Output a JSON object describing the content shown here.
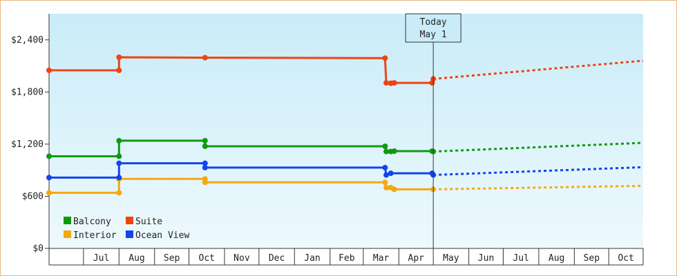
{
  "chart_data": {
    "type": "line",
    "title": "",
    "xlabel": "",
    "ylabel": "",
    "ylim": [
      0,
      2700
    ],
    "y_ticks": [
      0,
      600,
      1200,
      1800,
      2400
    ],
    "y_tick_labels": [
      "$0",
      "$600",
      "$1,200",
      "$1,800",
      "$2,400"
    ],
    "xlim": [
      "2015-06-01",
      "2016-10-31"
    ],
    "x_tick_labels": [
      {
        "date": "2015-07-01",
        "label": "Jul"
      },
      {
        "date": "2015-08-01",
        "label": "Aug"
      },
      {
        "date": "2015-09-01",
        "label": "Sep"
      },
      {
        "date": "2015-10-01",
        "label": "Oct"
      },
      {
        "date": "2015-11-01",
        "label": "Nov"
      },
      {
        "date": "2015-12-01",
        "label": "Dec"
      },
      {
        "date": "2016-01-01",
        "label": "Jan"
      },
      {
        "date": "2016-02-01",
        "label": "Feb"
      },
      {
        "date": "2016-03-01",
        "label": "Mar"
      },
      {
        "date": "2016-04-01",
        "label": "Apr"
      },
      {
        "date": "2016-05-01",
        "label": "May"
      },
      {
        "date": "2016-06-01",
        "label": "Jun"
      },
      {
        "date": "2016-07-01",
        "label": "Jul"
      },
      {
        "date": "2016-08-01",
        "label": "Aug"
      },
      {
        "date": "2016-09-01",
        "label": "Sep"
      },
      {
        "date": "2016-10-01",
        "label": "Oct"
      }
    ],
    "month_boundaries": [
      "2015-07-01",
      "2015-08-01",
      "2015-09-01",
      "2015-10-01",
      "2015-11-01",
      "2015-12-01",
      "2016-01-01",
      "2016-02-01",
      "2016-03-01",
      "2016-04-01",
      "2016-05-01",
      "2016-06-01",
      "2016-07-01",
      "2016-08-01",
      "2016-09-01",
      "2016-10-01",
      "2016-10-31"
    ],
    "today_marker": {
      "date": "2016-05-01",
      "label_line1": "Today",
      "label_line2": "May 1"
    },
    "legend": {
      "placement": "bottom-left",
      "columns": 2
    },
    "series": [
      {
        "name": "Balcony",
        "color": "#119911",
        "step": true,
        "points": [
          [
            "2015-06-01",
            1060
          ],
          [
            "2015-08-01",
            1060
          ],
          [
            "2015-08-01",
            1240
          ],
          [
            "2015-10-15",
            1240
          ],
          [
            "2015-10-15",
            1175
          ],
          [
            "2016-03-20",
            1175
          ],
          [
            "2016-03-21",
            1115
          ],
          [
            "2016-03-25",
            1115
          ],
          [
            "2016-03-28",
            1120
          ],
          [
            "2016-04-30",
            1120
          ],
          [
            "2016-05-01",
            1115
          ]
        ],
        "markers": [
          [
            "2015-06-01",
            1060
          ],
          [
            "2015-08-01",
            1060
          ],
          [
            "2015-08-01",
            1240
          ],
          [
            "2015-10-15",
            1240
          ],
          [
            "2015-10-15",
            1175
          ],
          [
            "2016-03-20",
            1175
          ],
          [
            "2016-03-21",
            1115
          ],
          [
            "2016-03-25",
            1115
          ],
          [
            "2016-03-28",
            1120
          ],
          [
            "2016-04-30",
            1120
          ],
          [
            "2016-05-01",
            1115
          ]
        ],
        "projection": [
          [
            "2016-05-01",
            1115
          ],
          [
            "2016-10-31",
            1215
          ]
        ]
      },
      {
        "name": "Suite",
        "color": "#ee4411",
        "step": true,
        "points": [
          [
            "2015-06-01",
            2050
          ],
          [
            "2015-08-01",
            2050
          ],
          [
            "2015-08-01",
            2200
          ],
          [
            "2015-10-15",
            2195
          ],
          [
            "2016-03-20",
            2190
          ],
          [
            "2016-03-21",
            1905
          ],
          [
            "2016-03-25",
            1900
          ],
          [
            "2016-03-28",
            1905
          ],
          [
            "2016-04-30",
            1905
          ],
          [
            "2016-05-01",
            1950
          ]
        ],
        "markers": [
          [
            "2015-06-01",
            2050
          ],
          [
            "2015-08-01",
            2050
          ],
          [
            "2015-08-01",
            2200
          ],
          [
            "2015-10-15",
            2195
          ],
          [
            "2016-03-20",
            2190
          ],
          [
            "2016-03-21",
            1905
          ],
          [
            "2016-03-25",
            1900
          ],
          [
            "2016-03-28",
            1905
          ],
          [
            "2016-04-30",
            1905
          ],
          [
            "2016-05-01",
            1950
          ]
        ],
        "projection": [
          [
            "2016-05-01",
            1950
          ],
          [
            "2016-10-31",
            2160
          ]
        ]
      },
      {
        "name": "Interior",
        "color": "#f5a711",
        "step": true,
        "points": [
          [
            "2015-06-01",
            640
          ],
          [
            "2015-08-01",
            640
          ],
          [
            "2015-08-01",
            800
          ],
          [
            "2015-10-15",
            800
          ],
          [
            "2015-10-15",
            760
          ],
          [
            "2016-03-20",
            760
          ],
          [
            "2016-03-21",
            700
          ],
          [
            "2016-03-25",
            700
          ],
          [
            "2016-03-28",
            680
          ],
          [
            "2016-05-01",
            680
          ]
        ],
        "markers": [
          [
            "2015-06-01",
            640
          ],
          [
            "2015-08-01",
            640
          ],
          [
            "2015-08-01",
            800
          ],
          [
            "2015-10-15",
            800
          ],
          [
            "2015-10-15",
            760
          ],
          [
            "2016-03-20",
            760
          ],
          [
            "2016-03-21",
            700
          ],
          [
            "2016-03-25",
            700
          ],
          [
            "2016-03-28",
            680
          ],
          [
            "2016-05-01",
            680
          ]
        ],
        "projection": [
          [
            "2016-05-01",
            680
          ],
          [
            "2016-10-31",
            720
          ]
        ]
      },
      {
        "name": "Ocean View",
        "color": "#1144ee",
        "step": true,
        "points": [
          [
            "2015-06-01",
            815
          ],
          [
            "2015-08-01",
            815
          ],
          [
            "2015-08-01",
            980
          ],
          [
            "2015-10-15",
            980
          ],
          [
            "2015-10-15",
            930
          ],
          [
            "2016-03-20",
            930
          ],
          [
            "2016-03-21",
            845
          ],
          [
            "2016-03-25",
            865
          ],
          [
            "2016-04-30",
            865
          ],
          [
            "2016-05-01",
            845
          ]
        ],
        "markers": [
          [
            "2015-06-01",
            815
          ],
          [
            "2015-08-01",
            815
          ],
          [
            "2015-08-01",
            980
          ],
          [
            "2015-10-15",
            980
          ],
          [
            "2015-10-15",
            930
          ],
          [
            "2016-03-20",
            930
          ],
          [
            "2016-03-21",
            845
          ],
          [
            "2016-03-25",
            865
          ],
          [
            "2016-04-30",
            865
          ],
          [
            "2016-05-01",
            845
          ]
        ],
        "projection": [
          [
            "2016-05-01",
            845
          ],
          [
            "2016-10-31",
            935
          ]
        ]
      }
    ]
  }
}
